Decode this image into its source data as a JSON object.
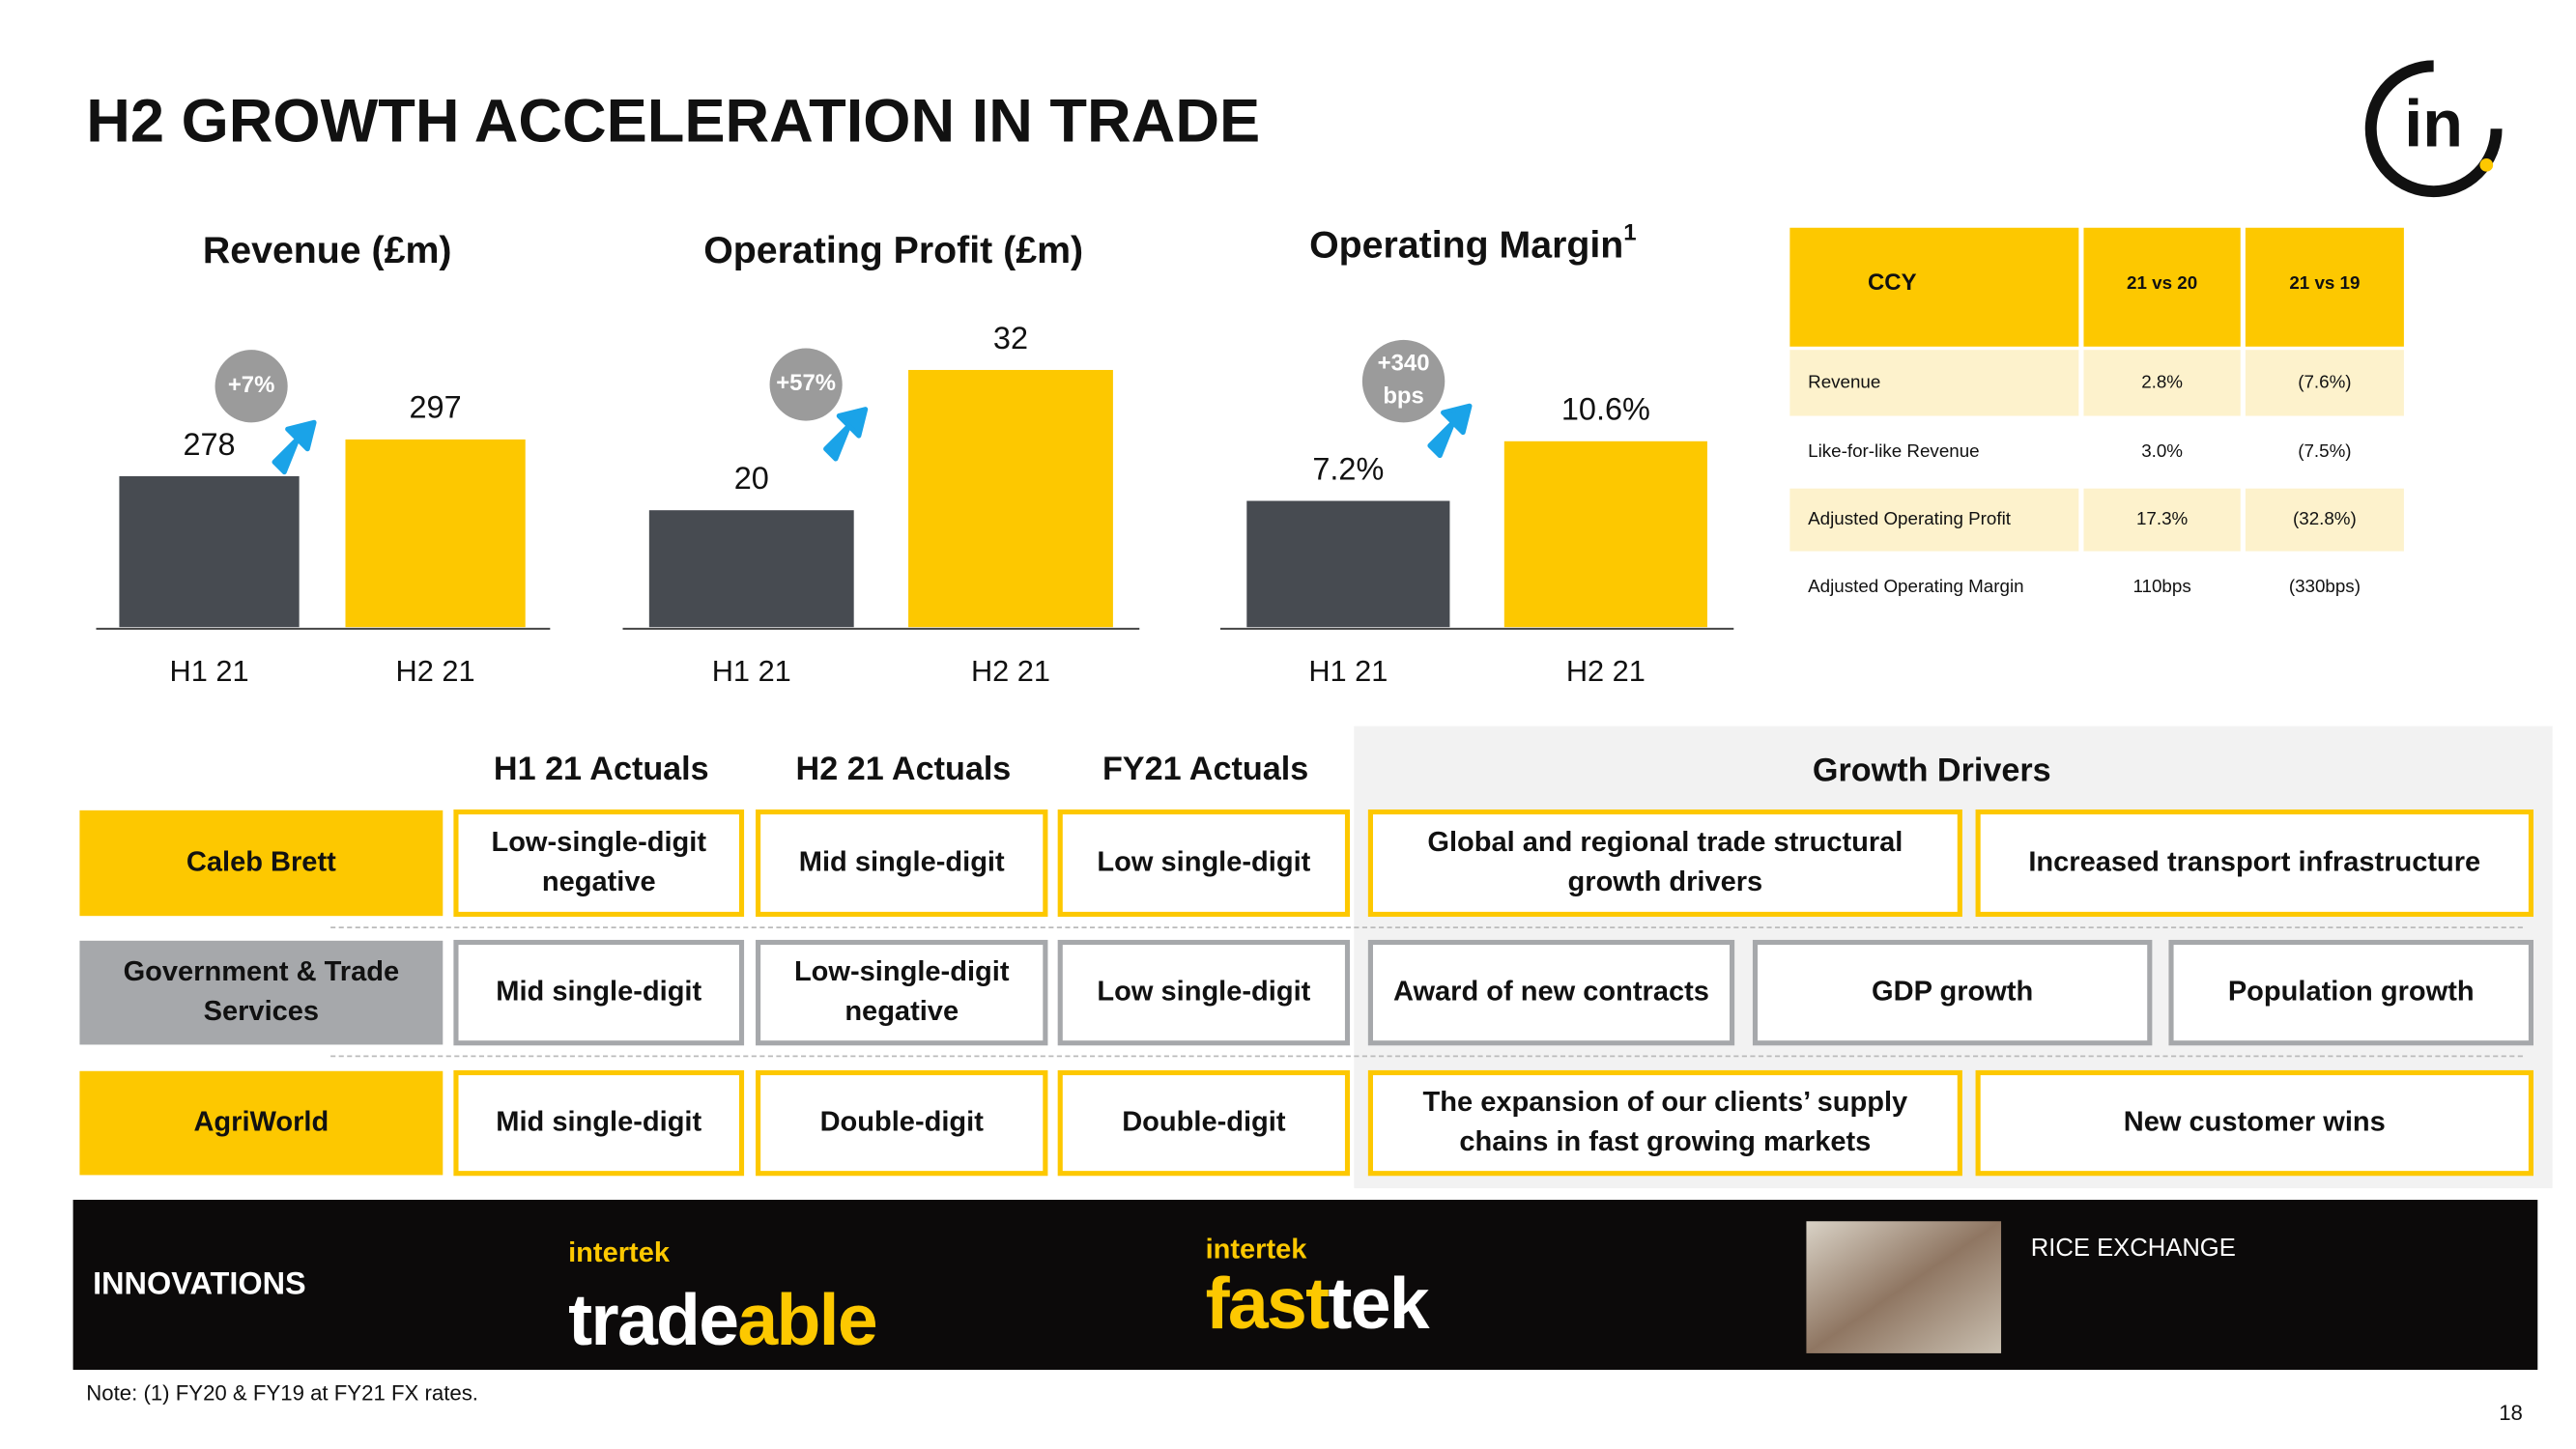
{
  "title": "H2 GROWTH ACCELERATION IN TRADE",
  "logo": "in",
  "chart_data": [
    {
      "type": "bar",
      "title": "Revenue  (£m)",
      "categories": [
        "H1 21",
        "H2 21"
      ],
      "values": [
        278,
        297
      ],
      "colors": [
        "#474b51",
        "#fdc800"
      ],
      "ylim": [
        200,
        345
      ],
      "annotation": "+7%"
    },
    {
      "type": "bar",
      "title": "Operating Profit (£m)",
      "categories": [
        "H1 21",
        "H2 21"
      ],
      "values": [
        20,
        32
      ],
      "colors": [
        "#474b51",
        "#fdc800"
      ],
      "ylim": [
        10,
        34
      ],
      "annotation": "+57%"
    },
    {
      "type": "bar",
      "title": "Operating Margin",
      "title_superscript": "1",
      "categories": [
        "H1 21",
        "H2 21"
      ],
      "values": [
        7.2,
        10.6
      ],
      "value_labels": [
        "7.2%",
        "10.6%"
      ],
      "colors": [
        "#474b51",
        "#fdc800"
      ],
      "ylim": [
        0,
        16
      ],
      "annotation": "+340 bps"
    }
  ],
  "table": {
    "header": [
      "CCY",
      "21 vs 20",
      "21 vs 19"
    ],
    "rows": [
      [
        "Revenue",
        "2.8%",
        "(7.6%)"
      ],
      [
        "Like-for-like Revenue",
        "3.0%",
        "(7.5%)"
      ],
      [
        "Adjusted Operating Profit",
        "17.3%",
        "(32.8%)"
      ],
      [
        "Adjusted Operating Margin",
        "110bps",
        "(330bps)"
      ]
    ]
  },
  "actuals": {
    "columns": [
      "H1 21 Actuals",
      "H2 21 Actuals",
      "FY21 Actuals"
    ],
    "drivers_title": "Growth Drivers",
    "rows": [
      {
        "name": "Caleb Brett",
        "values": [
          "Low-single-digit negative",
          "Mid single-digit",
          "Low single-digit"
        ],
        "drivers": [
          "Global and regional trade structural growth drivers",
          "Increased transport infrastructure"
        ]
      },
      {
        "name": "Government & Trade Services",
        "values": [
          "Mid single-digit",
          "Low-single-digit negative",
          "Low single-digit"
        ],
        "drivers": [
          "Award of new contracts",
          "GDP growth",
          "Population growth"
        ]
      },
      {
        "name": "AgriWorld",
        "values": [
          "Mid single-digit",
          "Double-digit",
          "Double-digit"
        ],
        "drivers": [
          "The expansion of our clients’ supply chains in fast growing markets",
          "New customer wins"
        ]
      }
    ]
  },
  "innovations": {
    "label": "INNOVATIONS",
    "brands": [
      {
        "maker": "intertek",
        "name": [
          "trade",
          "able"
        ]
      },
      {
        "maker": "intertek",
        "name": [
          "fast",
          "tek"
        ]
      }
    ],
    "rice": "RICE EXCHANGE"
  },
  "note": "Note: (1) FY20 & FY19 at FY21 FX rates.",
  "page": "18"
}
